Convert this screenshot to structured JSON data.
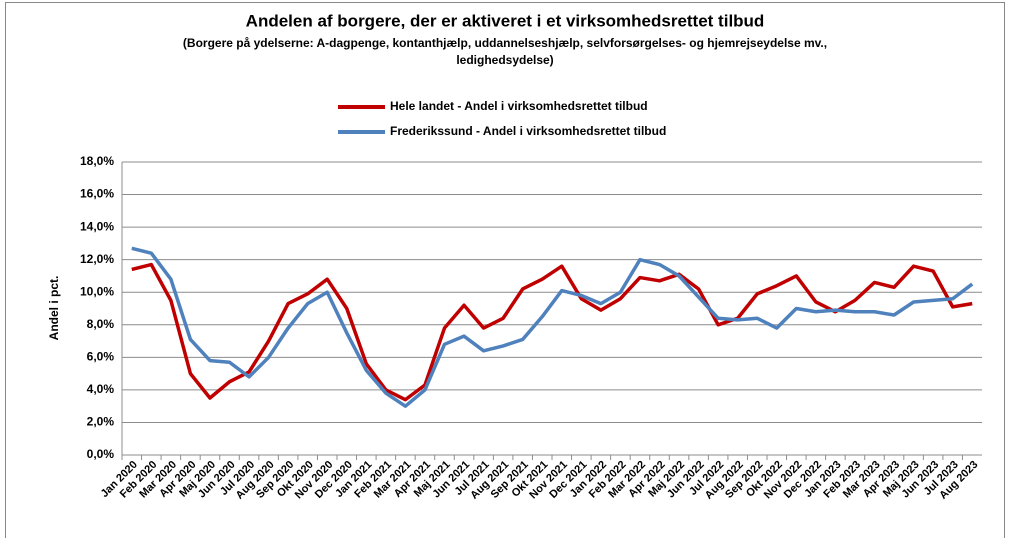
{
  "chart_data": {
    "type": "line",
    "title": "Andelen af borgere, der er aktiveret i et virksomhedsrettet tilbud",
    "subtitle": [
      "(Borgere på ydelserne: A-dagpenge, kontanthjælp, uddannelseshjælp, selvforsørgelses- og hjemrejseydelse mv.,",
      "ledighedsydelse)"
    ],
    "y_label": "Andel i pct.",
    "categories": [
      "Jan 2020",
      "Feb 2020",
      "Mar 2020",
      "Apr 2020",
      "Maj 2020",
      "Jun 2020",
      "Jul 2020",
      "Aug 2020",
      "Sep 2020",
      "Okt 2020",
      "Nov 2020",
      "Dec 2020",
      "Jan 2021",
      "Feb 2021",
      "Mar 2021",
      "Apr 2021",
      "Maj 2021",
      "Jun 2021",
      "Jul 2021",
      "Aug 2021",
      "Sep 2021",
      "Okt 2021",
      "Nov 2021",
      "Dec 2021",
      "Jan 2022",
      "Feb 2022",
      "Mar 2022",
      "Apr 2022",
      "Maj 2022",
      "Jun 2022",
      "Jul 2022",
      "Aug 2022",
      "Sep 2022",
      "Okt 2022",
      "Nov 2022",
      "Dec 2022",
      "Jan 2023",
      "Feb 2023",
      "Mar 2023",
      "Apr 2023",
      "Maj 2023",
      "Jun 2023",
      "Jul 2023",
      "Aug 2023"
    ],
    "series": [
      {
        "name": "Hele landet - Andel i virksomhedsrettet tilbud",
        "color": "#c00000",
        "values": [
          11.4,
          11.7,
          9.5,
          5.0,
          3.5,
          4.5,
          5.1,
          7.0,
          9.3,
          9.9,
          10.8,
          9.0,
          5.6,
          4.0,
          3.4,
          4.3,
          7.8,
          9.2,
          7.8,
          8.4,
          10.2,
          10.8,
          11.6,
          9.6,
          8.9,
          9.6,
          10.9,
          10.7,
          11.1,
          10.2,
          8.0,
          8.4,
          9.9,
          10.4,
          11.0,
          9.4,
          8.8,
          9.5,
          10.6,
          10.3,
          11.6,
          11.3,
          9.1,
          9.3
        ]
      },
      {
        "name": "Frederikssund - Andel i virksomhedsrettet tilbud",
        "color": "#4f81bd",
        "values": [
          12.7,
          12.4,
          10.8,
          7.1,
          5.8,
          5.7,
          4.8,
          6.0,
          7.8,
          9.3,
          10.0,
          7.5,
          5.2,
          3.8,
          3.0,
          4.0,
          6.8,
          7.3,
          6.4,
          6.7,
          7.1,
          8.5,
          10.1,
          9.8,
          9.3,
          10.0,
          12.0,
          11.7,
          11.0,
          9.7,
          8.4,
          8.3,
          8.4,
          7.8,
          9.0,
          8.8,
          8.9,
          8.8,
          8.8,
          8.6,
          9.4,
          9.5,
          9.6,
          10.5
        ]
      }
    ],
    "ylim": [
      0,
      18
    ],
    "yticks": [
      {
        "value": 0,
        "label": "0,0%"
      },
      {
        "value": 2,
        "label": "2,0%"
      },
      {
        "value": 4,
        "label": "4,0%"
      },
      {
        "value": 6,
        "label": "6,0%"
      },
      {
        "value": 8,
        "label": "8,0%"
      },
      {
        "value": 10,
        "label": "10,0%"
      },
      {
        "value": 12,
        "label": "12,0%"
      },
      {
        "value": 14,
        "label": "14,0%"
      },
      {
        "value": 16,
        "label": "16,0%"
      },
      {
        "value": 18,
        "label": "18,0%"
      }
    ],
    "grid": true
  }
}
